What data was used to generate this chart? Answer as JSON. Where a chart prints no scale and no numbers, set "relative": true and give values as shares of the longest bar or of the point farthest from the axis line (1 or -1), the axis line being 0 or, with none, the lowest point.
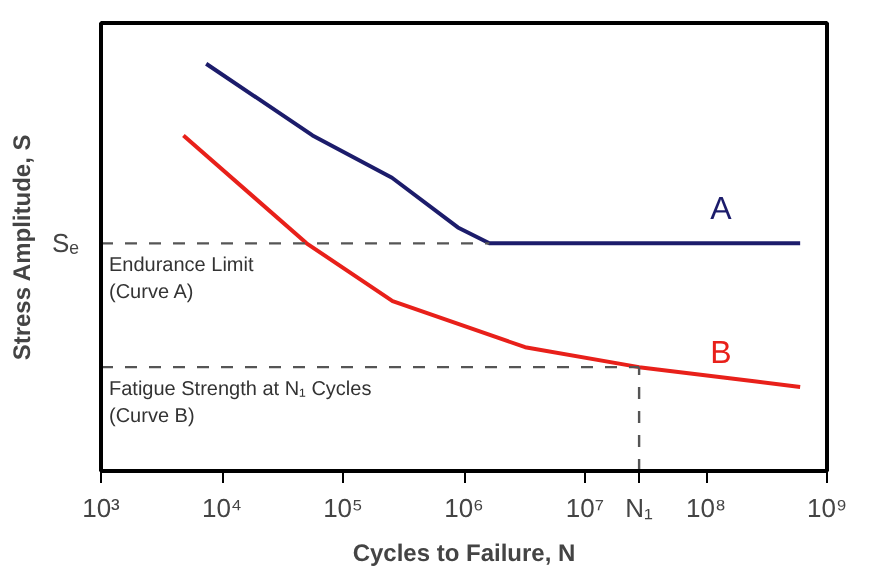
{
  "chart_data": {
    "type": "line",
    "xlabel": "Cycles to Failure, N",
    "ylabel": "Stress Amplitude, S",
    "log": "x",
    "relative": true,
    "grid": false,
    "tick_labels": "x",
    "xlim": [
      1000,
      1000000000
    ],
    "xticks": [
      {
        "value": 1000,
        "label": "10³"
      },
      {
        "value": 10000,
        "label": "10⁴"
      },
      {
        "value": 100000,
        "label": "10⁵"
      },
      {
        "value": 1000000,
        "label": "10⁶"
      },
      {
        "value": 10000000,
        "label": "10⁷"
      },
      {
        "value": 100000000,
        "label": "10⁸"
      },
      {
        "value": 1000000000,
        "label": "10⁹"
      }
    ],
    "series": [
      {
        "name": "A",
        "color": "#1c1c6b",
        "x": [
          7400,
          56000,
          254000,
          890000,
          1620000,
          600000000
        ],
        "values": [
          1,
          0.824,
          0.72,
          0.598,
          0.559,
          0.559
        ]
      },
      {
        "name": "B",
        "color": "#e8201a",
        "x": [
          4800,
          50000,
          257000,
          3200000,
          28000000,
          260000000,
          600000000
        ],
        "values": [
          0.824,
          0.559,
          0.417,
          0.304,
          0.255,
          0.22,
          0.206
        ]
      }
    ],
    "ref_lines": [
      {
        "axis": "y",
        "value": 0.559,
        "label": "Sₑ",
        "line_style": "dashed"
      },
      {
        "axis": "y",
        "value": 0.255,
        "line_style": "dashed"
      },
      {
        "axis": "x",
        "value": 28000000,
        "label": "N₁",
        "line_style": "dashed"
      }
    ],
    "annotations": [
      "Endurance Limit\n(Curve A)",
      "Fatigue Strength at N₁ Cycles\n(Curve B)"
    ]
  }
}
